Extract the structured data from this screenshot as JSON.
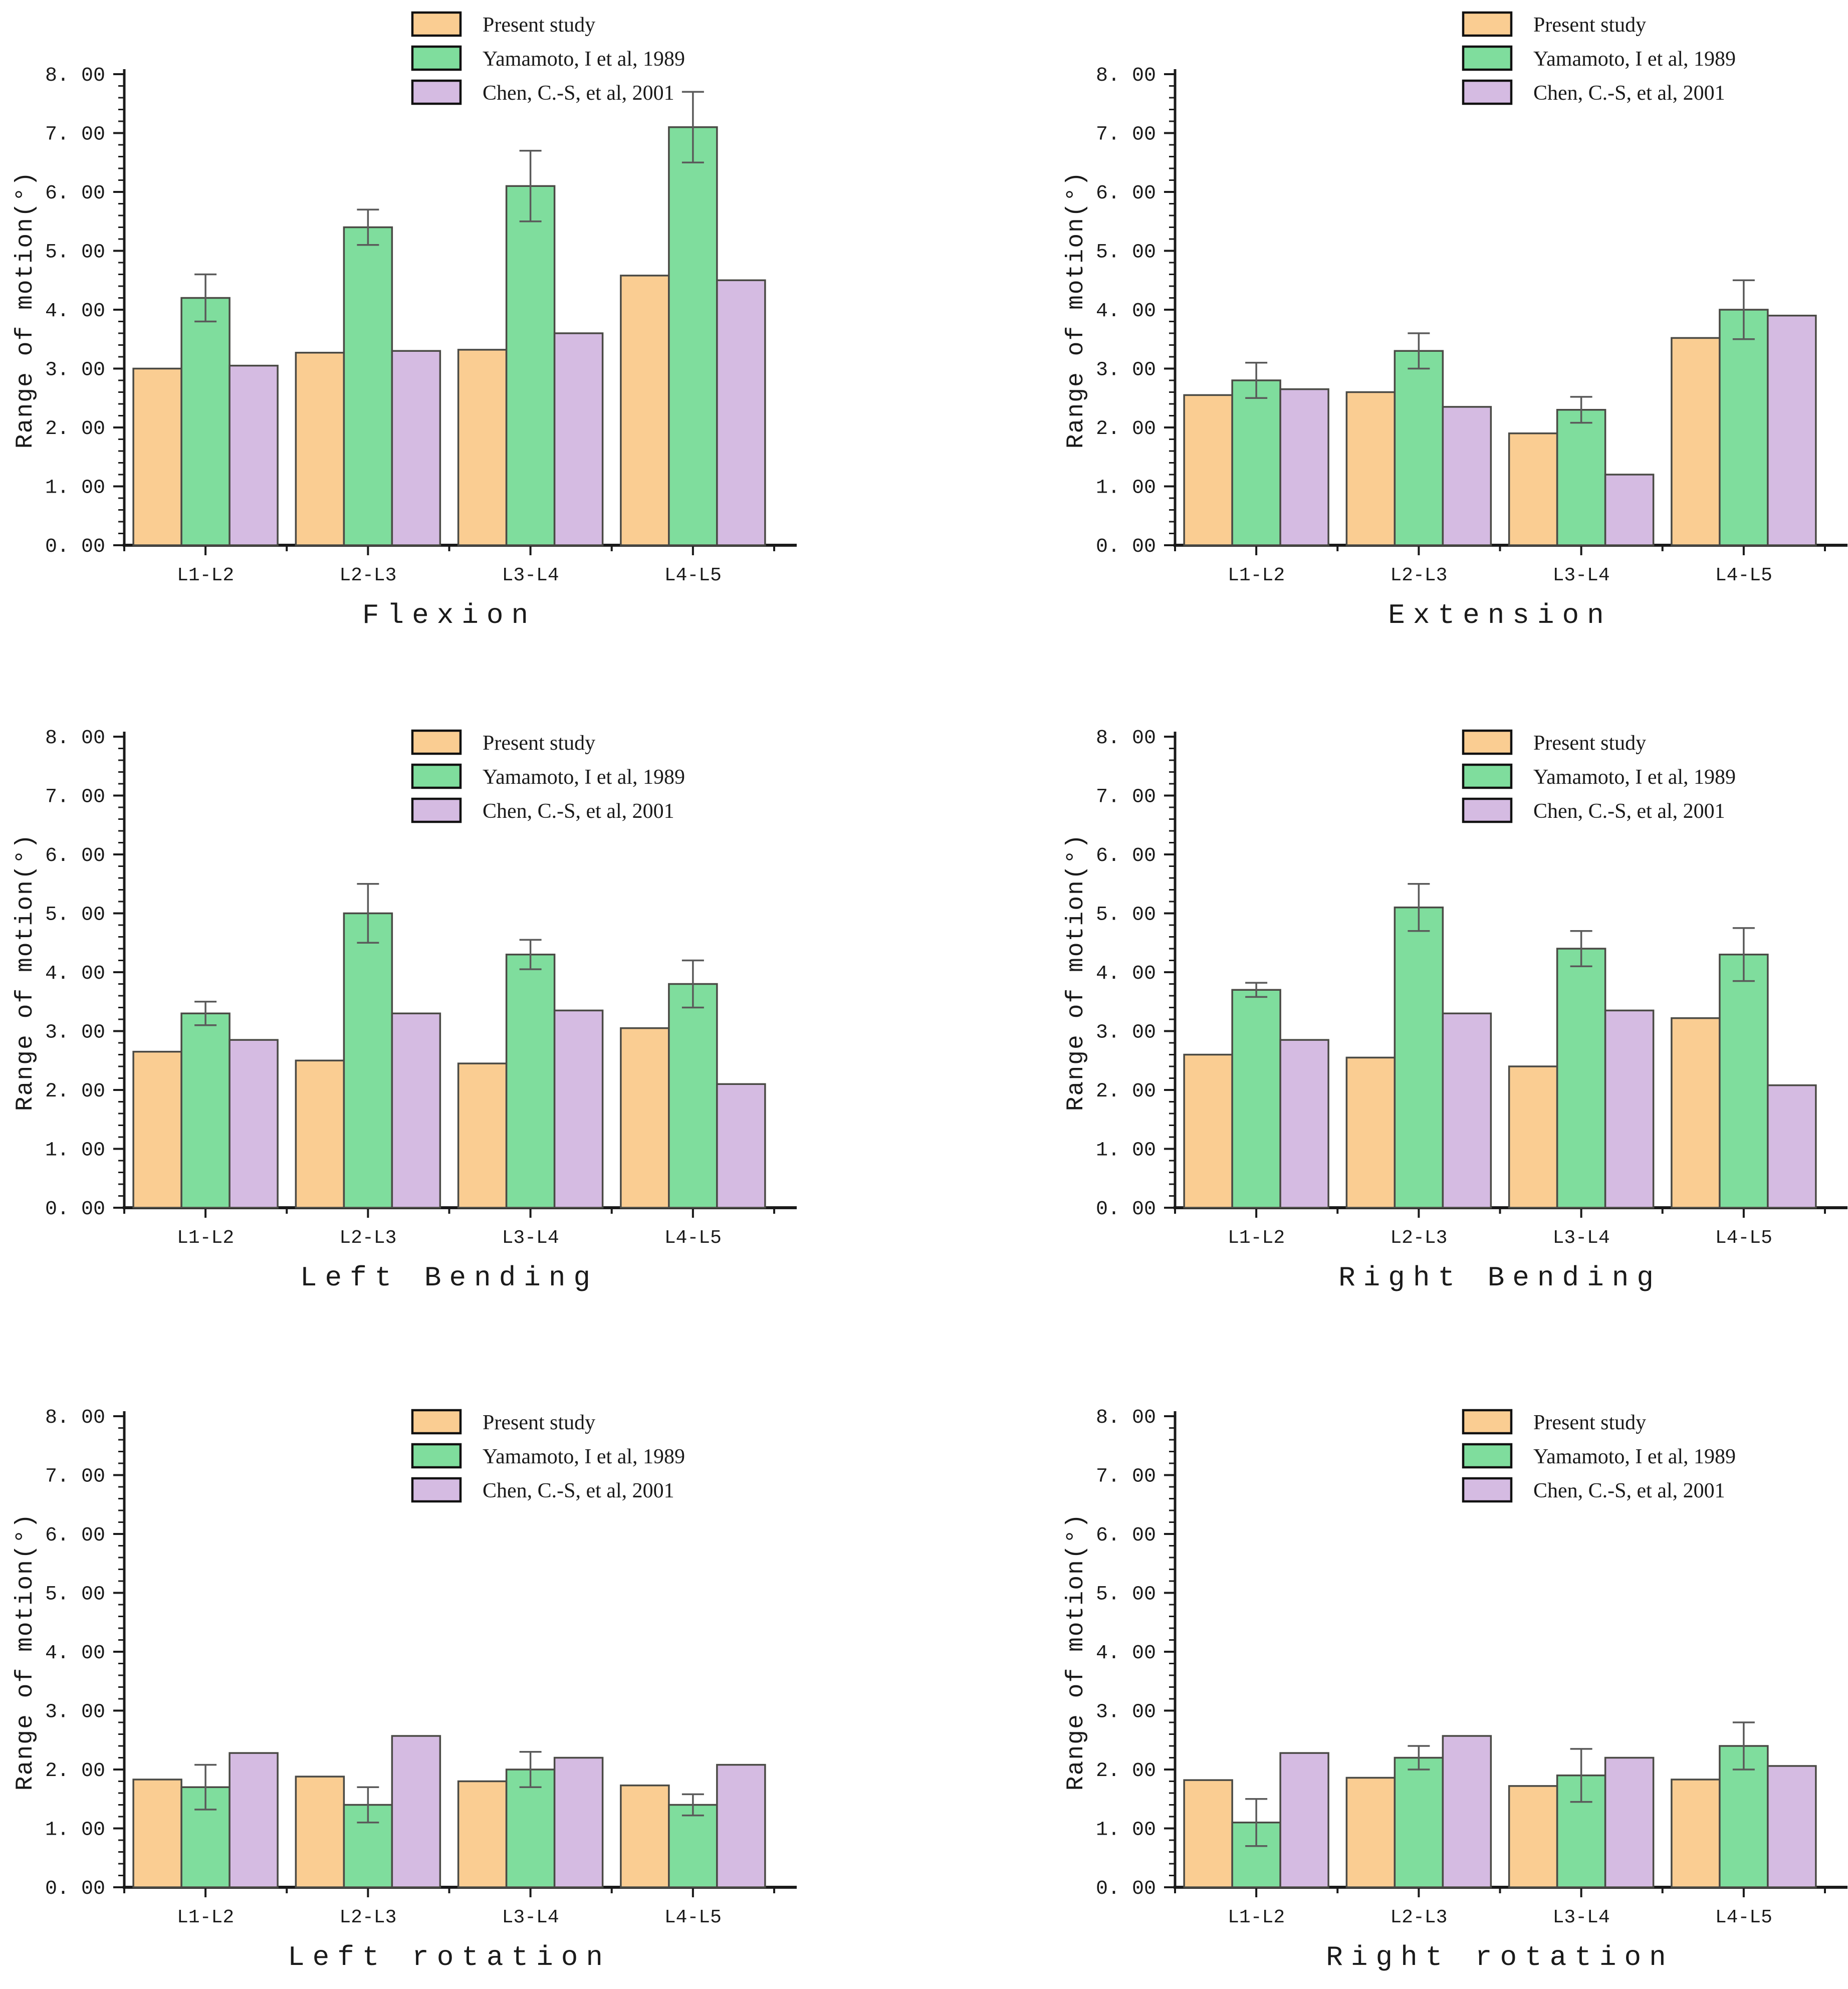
{
  "figure": {
    "ylabel": "Range of motion(°)",
    "y_tick_labels": [
      "0. 00",
      "1. 00",
      "2. 00",
      "3. 00",
      "4. 00",
      "5. 00",
      "6. 00",
      "7. 00",
      "8. 00"
    ],
    "categories": [
      "L1-L2",
      "L2-L3",
      "L3-L4",
      "L4-L5"
    ],
    "legend": [
      {
        "label": "Present study",
        "color": "#FACD92"
      },
      {
        "label": "Yamamoto, I et al, 1989",
        "color": "#7FDD9D"
      },
      {
        "label": "Chen, C.-S, et al, 2001",
        "color": "#D5BBE2"
      }
    ],
    "bar_edge_color": "#4a4a45",
    "error_bar_color": "#5a5a5a",
    "axis_color": "#1a1a1a",
    "text_color": "#1a1a1a"
  },
  "chart_data": [
    {
      "type": "bar",
      "title": "Flexion",
      "xlabel": "Flexion",
      "ylabel": "Range of motion(°)",
      "ylim": [
        0,
        8
      ],
      "grid": false,
      "legend_position": "above-right",
      "categories": [
        "L1-L2",
        "L2-L3",
        "L3-L4",
        "L4-L5"
      ],
      "series": [
        {
          "name": "Present study",
          "color": "#FACD92",
          "values": [
            3.0,
            3.27,
            3.32,
            4.58
          ]
        },
        {
          "name": "Yamamoto, I et al, 1989",
          "color": "#7FDD9D",
          "values": [
            4.2,
            5.4,
            6.1,
            7.1
          ],
          "errors": [
            0.4,
            0.3,
            0.6,
            0.6
          ]
        },
        {
          "name": "Chen, C.-S, et al, 2001",
          "color": "#D5BBE2",
          "values": [
            3.05,
            3.3,
            3.6,
            4.5
          ]
        }
      ]
    },
    {
      "type": "bar",
      "title": "Extension",
      "xlabel": "Extension",
      "ylabel": "Range of motion(°)",
      "ylim": [
        0,
        8
      ],
      "grid": false,
      "legend_position": "above-right",
      "categories": [
        "L1-L2",
        "L2-L3",
        "L3-L4",
        "L4-L5"
      ],
      "series": [
        {
          "name": "Present study",
          "color": "#FACD92",
          "values": [
            2.55,
            2.6,
            1.9,
            3.52
          ]
        },
        {
          "name": "Yamamoto, I et al, 1989",
          "color": "#7FDD9D",
          "values": [
            2.8,
            3.3,
            2.3,
            4.0
          ],
          "errors": [
            0.3,
            0.3,
            0.22,
            0.5
          ]
        },
        {
          "name": "Chen, C.-S, et al, 2001",
          "color": "#D5BBE2",
          "values": [
            2.65,
            2.35,
            1.2,
            3.9
          ]
        }
      ]
    },
    {
      "type": "bar",
      "title": "Left Bending",
      "xlabel": "Left Bending",
      "ylabel": "Range of motion(°)",
      "ylim": [
        0,
        8
      ],
      "grid": false,
      "legend_position": "inside-top-right",
      "categories": [
        "L1-L2",
        "L2-L3",
        "L3-L4",
        "L4-L5"
      ],
      "series": [
        {
          "name": "Present study",
          "color": "#FACD92",
          "values": [
            2.65,
            2.5,
            2.45,
            3.05
          ]
        },
        {
          "name": "Yamamoto, I et al, 1989",
          "color": "#7FDD9D",
          "values": [
            3.3,
            5.0,
            4.3,
            3.8
          ],
          "errors": [
            0.2,
            0.5,
            0.25,
            0.4
          ]
        },
        {
          "name": "Chen, C.-S, et al, 2001",
          "color": "#D5BBE2",
          "values": [
            2.85,
            3.3,
            3.35,
            2.1
          ]
        }
      ]
    },
    {
      "type": "bar",
      "title": "Right Bending",
      "xlabel": "Right Bending",
      "ylabel": "Range of motion(°)",
      "ylim": [
        0,
        8
      ],
      "grid": false,
      "legend_position": "inside-top-right",
      "categories": [
        "L1-L2",
        "L2-L3",
        "L3-L4",
        "L4-L5"
      ],
      "series": [
        {
          "name": "Present study",
          "color": "#FACD92",
          "values": [
            2.6,
            2.55,
            2.4,
            3.22
          ]
        },
        {
          "name": "Yamamoto, I et al, 1989",
          "color": "#7FDD9D",
          "values": [
            3.7,
            5.1,
            4.4,
            4.3
          ],
          "errors": [
            0.12,
            0.4,
            0.3,
            0.45
          ]
        },
        {
          "name": "Chen, C.-S, et al, 2001",
          "color": "#D5BBE2",
          "values": [
            2.85,
            3.3,
            3.35,
            2.08
          ]
        }
      ]
    },
    {
      "type": "bar",
      "title": "Left rotation",
      "xlabel": "Left rotation",
      "ylabel": "Range of motion(°)",
      "ylim": [
        0,
        8
      ],
      "grid": false,
      "legend_position": "inside-top-right",
      "categories": [
        "L1-L2",
        "L2-L3",
        "L3-L4",
        "L4-L5"
      ],
      "series": [
        {
          "name": "Present study",
          "color": "#FACD92",
          "values": [
            1.83,
            1.88,
            1.8,
            1.73
          ]
        },
        {
          "name": "Yamamoto, I et al, 1989",
          "color": "#7FDD9D",
          "values": [
            1.7,
            1.4,
            2.0,
            1.4
          ],
          "errors": [
            0.38,
            0.3,
            0.3,
            0.18
          ]
        },
        {
          "name": "Chen, C.-S, et al, 2001",
          "color": "#D5BBE2",
          "values": [
            2.28,
            2.57,
            2.2,
            2.08
          ]
        }
      ]
    },
    {
      "type": "bar",
      "title": "Right rotation",
      "xlabel": "Right rotation",
      "ylabel": "Range of motion(°)",
      "ylim": [
        0,
        8
      ],
      "grid": false,
      "legend_position": "inside-top-right",
      "categories": [
        "L1-L2",
        "L2-L3",
        "L3-L4",
        "L4-L5"
      ],
      "series": [
        {
          "name": "Present study",
          "color": "#FACD92",
          "values": [
            1.82,
            1.86,
            1.72,
            1.83
          ]
        },
        {
          "name": "Yamamoto, I et al, 1989",
          "color": "#7FDD9D",
          "values": [
            1.1,
            2.2,
            1.9,
            2.4
          ],
          "errors": [
            0.4,
            0.2,
            0.45,
            0.4
          ]
        },
        {
          "name": "Chen, C.-S, et al, 2001",
          "color": "#D5BBE2",
          "values": [
            2.28,
            2.57,
            2.2,
            2.06
          ]
        }
      ]
    }
  ]
}
